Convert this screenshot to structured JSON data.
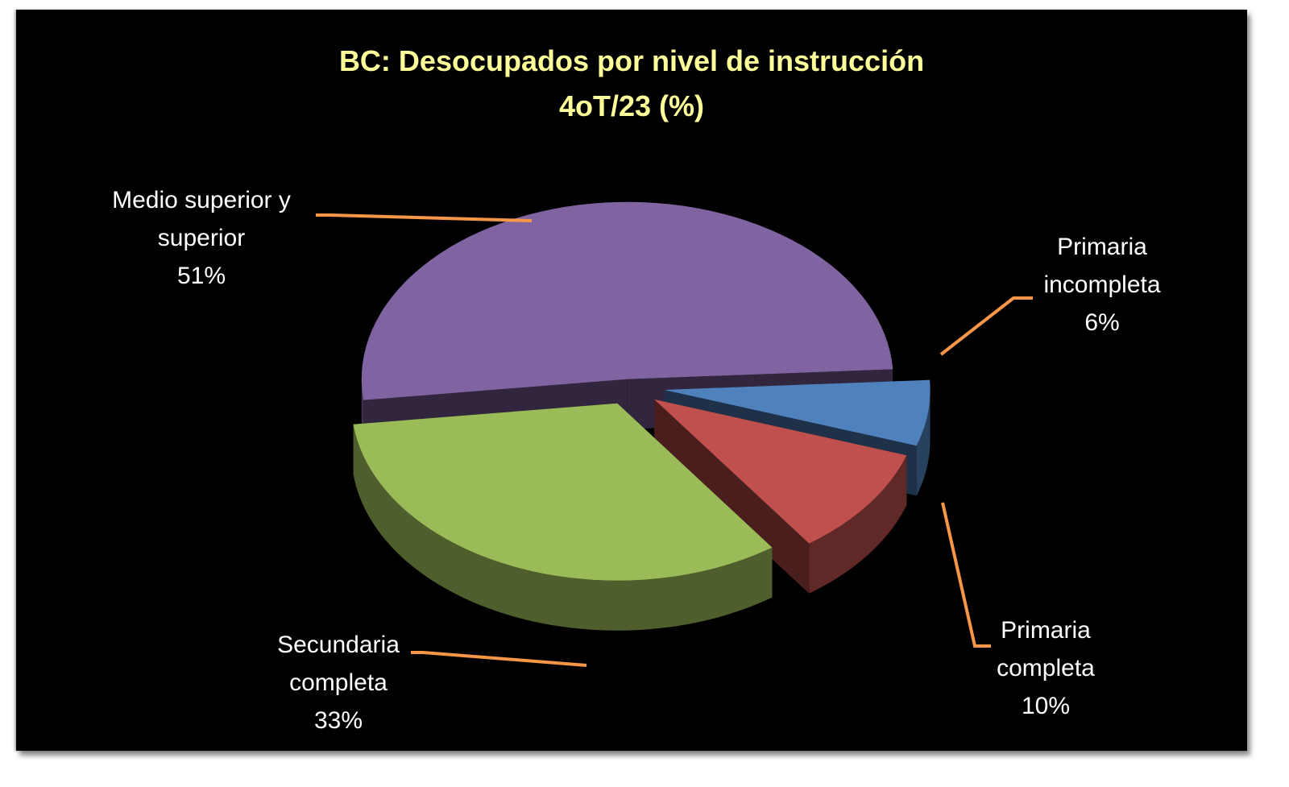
{
  "chart_data": {
    "type": "pie",
    "title": "BC: Desocupados por nivel de instrucción",
    "subtitle": "4oT/23 (%)",
    "slices": [
      {
        "name": "Primaria incompleta",
        "label_lines": [
          "Primaria",
          "incompleta"
        ],
        "value": 6,
        "value_label": "6%",
        "color": "#4f81bd"
      },
      {
        "name": "Primaria completa",
        "label_lines": [
          "Primaria",
          "completa"
        ],
        "value": 10,
        "value_label": "10%",
        "color": "#c0504d"
      },
      {
        "name": "Secundaria completa",
        "label_lines": [
          "Secundaria",
          "completa"
        ],
        "value": 33,
        "value_label": "33%",
        "color": "#9bbb59"
      },
      {
        "name": "Medio superior y superior",
        "label_lines": [
          "Medio superior y",
          "superior"
        ],
        "value": 51,
        "value_label": "51%",
        "color": "#8064a2"
      }
    ],
    "exploded": true,
    "three_d": true,
    "leader_line_color": "#f79646",
    "label_color": "#ffffff",
    "title_color": "#ffff99",
    "background": "#000000"
  }
}
